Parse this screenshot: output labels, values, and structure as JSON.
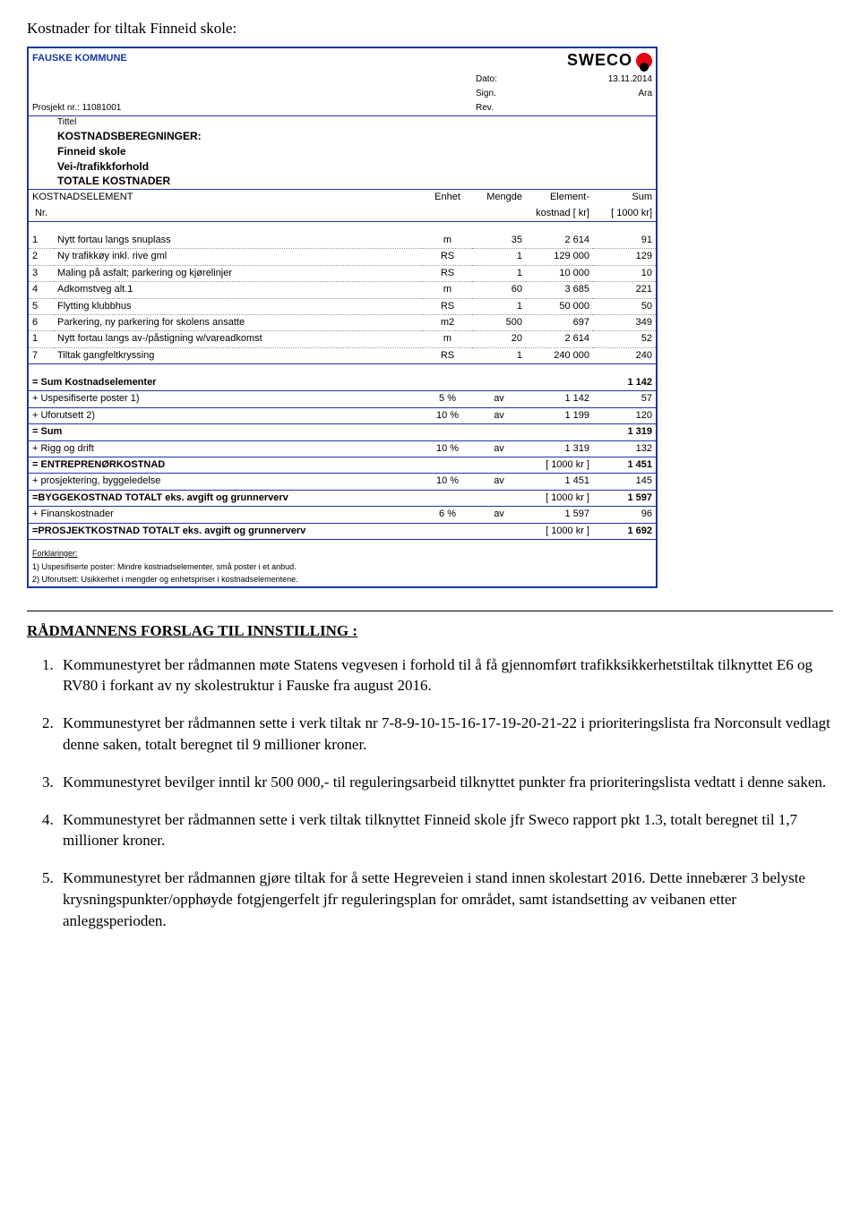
{
  "intro": "Kostnader for tiltak Finneid skole:",
  "header": {
    "org": "FAUSKE KOMMUNE",
    "project_label": "Prosjekt nr.:",
    "project_no": "11081001",
    "date_label": "Dato:",
    "date": "13.11.2014",
    "sign_label": "Sign.",
    "sign": "Ara",
    "rev_label": "Rev.",
    "logo_text": "SWECO",
    "tittel_label": "Tittel",
    "t1": "KOSTNADSBEREGNINGER:",
    "t2": "Finneid skole",
    "t3": "Vei-/trafikkforhold",
    "t4": "TOTALE KOSTNADER"
  },
  "cols": {
    "c1": "KOSTNADSELEMENT",
    "c1b": "Nr.",
    "c2": "Enhet",
    "c3": "Mengde",
    "c4": "Element-",
    "c4b": "kostnad [ kr]",
    "c5": "Sum",
    "c5b": "[ 1000 kr]"
  },
  "rows": [
    {
      "n": "1",
      "d": "Nytt fortau langs snuplass",
      "e": "m",
      "m": "35",
      "k": "2 614",
      "s": "91"
    },
    {
      "n": "2",
      "d": "Ny trafikkøy inkl. rive gml",
      "e": "RS",
      "m": "1",
      "k": "129 000",
      "s": "129"
    },
    {
      "n": "3",
      "d": "Maling på asfalt; parkering og kjørelinjer",
      "e": "RS",
      "m": "1",
      "k": "10 000",
      "s": "10"
    },
    {
      "n": "4",
      "d": "Adkomstveg alt.1",
      "e": "m",
      "m": "60",
      "k": "3 685",
      "s": "221"
    },
    {
      "n": "5",
      "d": "Flytting klubbhus",
      "e": "RS",
      "m": "1",
      "k": "50 000",
      "s": "50"
    },
    {
      "n": "6",
      "d": "Parkering, ny parkering for skolens ansatte",
      "e": "m2",
      "m": "500",
      "k": "697",
      "s": "349"
    },
    {
      "n": "1",
      "d": "Nytt fortau langs av-/påstigning w/vareadkomst",
      "e": "m",
      "m": "20",
      "k": "2 614",
      "s": "52"
    },
    {
      "n": "7",
      "d": "Tiltak gangfeltkryssing",
      "e": "RS",
      "m": "1",
      "k": "240 000",
      "s": "240"
    }
  ],
  "sums": [
    {
      "l": "= Sum Kostnadselementer",
      "p": "",
      "av": "",
      "m": "",
      "u": "",
      "s": "1 142",
      "bold": true
    },
    {
      "l": "+ Uspesifiserte poster 1)",
      "p": "5 %",
      "av": "av",
      "m": "1 142",
      "u": "",
      "s": "57"
    },
    {
      "l": "+ Uforutsett 2)",
      "p": "10 %",
      "av": "av",
      "m": "1 199",
      "u": "",
      "s": "120"
    },
    {
      "l": "= Sum",
      "p": "",
      "av": "",
      "m": "",
      "u": "",
      "s": "1 319",
      "bold": true
    },
    {
      "l": "+ Rigg og drift",
      "p": "10 %",
      "av": "av",
      "m": "1 319",
      "u": "",
      "s": "132"
    },
    {
      "l": "= ENTREPRENØRKOSTNAD",
      "p": "",
      "av": "",
      "m": "",
      "u": "[ 1000 kr ]",
      "s": "1 451",
      "bold": true
    },
    {
      "l": "+ prosjektering, byggeledelse",
      "p": "10 %",
      "av": "av",
      "m": "1 451",
      "u": "",
      "s": "145"
    },
    {
      "l": "=BYGGEKOSTNAD TOTALT eks. avgift og grunnerverv",
      "p": "",
      "av": "",
      "m": "",
      "u": "[ 1000 kr ]",
      "s": "1 597",
      "bold": true
    },
    {
      "l": "+ Finanskostnader",
      "p": "6 %",
      "av": "av",
      "m": "1 597",
      "u": "",
      "s": "96"
    },
    {
      "l": "=PROSJEKTKOSTNAD TOTALT eks. avgift og grunnerverv",
      "p": "",
      "av": "",
      "m": "",
      "u": "[ 1000 kr ]",
      "s": "1 692",
      "bold": true
    }
  ],
  "foot": {
    "h": "Forklaringer:",
    "f1": "1) Uspesifiserte poster: Mindre kostnadselementer, små poster i et anbud.",
    "f2": "2) Uforutsett: Usikkerhet i mengder og enhetspriser i kostnadselementene."
  },
  "section_title": "RÅDMANNENS FORSLAG TIL INNSTILLING :",
  "items": [
    "Kommunestyret ber rådmannen møte Statens vegvesen i forhold til å få gjennomført trafikksikkerhetstiltak tilknyttet E6 og RV80 i forkant av ny skolestruktur i Fauske fra august 2016.",
    "Kommunestyret ber rådmannen sette i verk tiltak nr 7-8-9-10-15-16-17-19-20-21-22 i prioriteringslista fra Norconsult vedlagt denne saken, totalt beregnet til 9 millioner kroner.",
    "Kommunestyret bevilger inntil kr 500 000,- til reguleringsarbeid tilknyttet punkter fra prioriteringslista vedtatt i denne saken.",
    "Kommunestyret ber rådmannen sette i verk tiltak tilknyttet Finneid skole jfr Sweco rapport pkt 1.3, totalt beregnet til 1,7 millioner kroner.",
    "Kommunestyret ber rådmannen gjøre tiltak for å sette Hegreveien i stand innen skolestart 2016. Dette innebærer 3 belyste krysningspunkter/opphøyde fotgjengerfelt jfr reguleringsplan for området, samt istandsetting av veibanen etter anleggsperioden."
  ]
}
